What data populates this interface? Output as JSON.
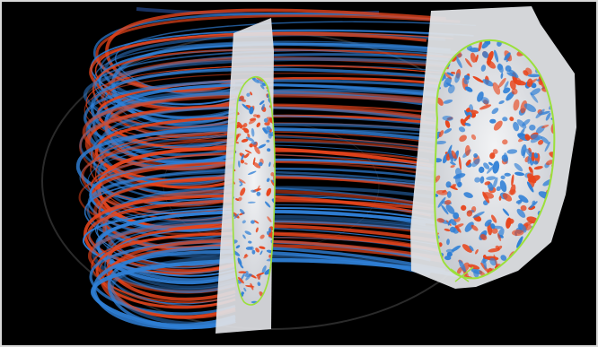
{
  "scene": {
    "description_icon": "tokamak-plasma-turbulence-visualization",
    "colors": {
      "background": "#000000",
      "frame": "#d9d9d9",
      "positive": "#e8451c",
      "negative": "#2f7fd6",
      "slice_fill": "#d9dde3",
      "separatrix": "#9be03a"
    }
  }
}
